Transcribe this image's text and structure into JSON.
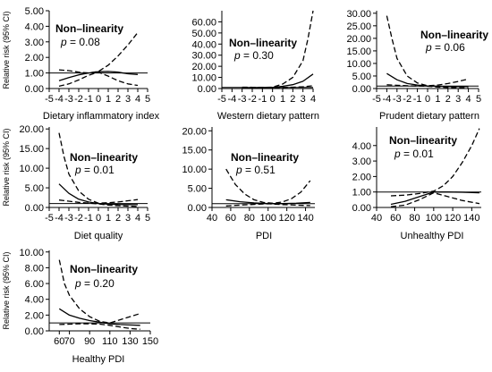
{
  "figure": {
    "y_axis_label": "Relative risk (95% CI)",
    "annotation_title": "Non–linearity",
    "p_symbol": "p",
    "p_equals": "="
  },
  "chart_data": [
    {
      "type": "line",
      "xlabel": "Dietary inflammatory index",
      "ylabel": "Relative risk (95% CI)",
      "annotation": "Non–linearity",
      "p_value": "0.08",
      "xlim": [
        -5,
        5
      ],
      "ylim": [
        0,
        5
      ],
      "x_ticks": [
        "-5",
        "-4",
        "-3",
        "-2",
        "-1",
        "0",
        "1",
        "2",
        "3",
        "4",
        "5"
      ],
      "y_ticks": [
        "0.00",
        "1.00",
        "2.00",
        "3.00",
        "4.00",
        "5.00"
      ],
      "reference_line": 1,
      "grid": false,
      "series": [
        {
          "role": "estimate",
          "x": [
            -4,
            -3,
            -2,
            -1,
            0,
            1,
            2,
            3,
            4
          ],
          "y": [
            0.5,
            0.7,
            0.88,
            1.0,
            1.08,
            1.1,
            1.05,
            0.95,
            0.9
          ]
        },
        {
          "role": "upper_ci",
          "x": [
            -4,
            -3,
            -2,
            -1,
            0,
            1,
            2,
            3,
            4
          ],
          "y": [
            1.2,
            1.15,
            1.05,
            1.0,
            1.1,
            1.5,
            2.1,
            2.8,
            3.6
          ]
        },
        {
          "role": "lower_ci",
          "x": [
            -4,
            -3,
            -2,
            -1,
            0,
            1,
            2,
            3,
            4
          ],
          "y": [
            0.15,
            0.3,
            0.55,
            0.85,
            1.05,
            0.8,
            0.5,
            0.3,
            0.2
          ]
        }
      ]
    },
    {
      "type": "line",
      "xlabel": "Western dietary pattern",
      "ylabel": "Relative risk (95% CI)",
      "annotation": "Non–linearity",
      "p_value": "0.30",
      "xlim": [
        -5,
        4
      ],
      "ylim": [
        0,
        70
      ],
      "x_ticks": [
        "-5",
        "-4",
        "-3",
        "-2",
        "-1",
        "0",
        "1",
        "2",
        "3",
        "4"
      ],
      "y_ticks": [
        "0.00",
        "10.00",
        "20.00",
        "30.00",
        "40.00",
        "50.00",
        "60.00"
      ],
      "reference_line": 1,
      "grid": false,
      "series": [
        {
          "role": "estimate",
          "x": [
            -3,
            -2,
            -1,
            0,
            1,
            2,
            3,
            4
          ],
          "y": [
            0.6,
            0.75,
            0.9,
            1.0,
            2.0,
            3.5,
            6.5,
            13.0
          ]
        },
        {
          "role": "upper_ci",
          "x": [
            -3,
            -2,
            -1,
            0,
            1,
            2,
            3,
            3.5,
            4
          ],
          "y": [
            1.2,
            1.1,
            1.05,
            1.2,
            4.0,
            10.0,
            25.0,
            45.0,
            70.0
          ]
        },
        {
          "role": "lower_ci",
          "x": [
            -3,
            -2,
            -1,
            0,
            1,
            2,
            3,
            4
          ],
          "y": [
            0.3,
            0.5,
            0.8,
            0.9,
            1.0,
            1.2,
            1.6,
            2.5
          ]
        }
      ]
    },
    {
      "type": "line",
      "xlabel": "Prudent dietary pattern",
      "ylabel": "Relative risk (95% CI)",
      "annotation": "Non–linearity",
      "p_value": "0.06",
      "xlim": [
        -5,
        5
      ],
      "ylim": [
        0,
        31
      ],
      "x_ticks": [
        "-5",
        "-4",
        "-3",
        "-2",
        "-1",
        "0",
        "1",
        "2",
        "3",
        "4",
        "5"
      ],
      "y_ticks": [
        "0.00",
        "5.00",
        "10.00",
        "15.00",
        "20.00",
        "25.00",
        "30.00"
      ],
      "reference_line": 1,
      "grid": false,
      "series": [
        {
          "role": "estimate",
          "x": [
            -4,
            -3,
            -2,
            -1,
            0,
            1,
            2,
            3,
            4
          ],
          "y": [
            6.0,
            3.5,
            2.0,
            1.4,
            1.0,
            0.9,
            0.8,
            0.8,
            0.8
          ]
        },
        {
          "role": "upper_ci",
          "x": [
            -4,
            -3.5,
            -3,
            -2,
            -1,
            0,
            1,
            2,
            3,
            4
          ],
          "y": [
            29.0,
            20.0,
            12.0,
            5.0,
            2.2,
            1.1,
            1.4,
            2.0,
            2.8,
            3.8
          ]
        },
        {
          "role": "lower_ci",
          "x": [
            -4,
            -3,
            -2,
            -1,
            0,
            1,
            2,
            3,
            4
          ],
          "y": [
            1.5,
            1.3,
            1.1,
            1.0,
            0.9,
            0.6,
            0.4,
            0.3,
            0.2
          ]
        }
      ]
    },
    {
      "type": "line",
      "xlabel": "Diet quality",
      "ylabel": "Relative risk (95% CI)",
      "annotation": "Non–linearity",
      "p_value": "0.01",
      "xlim": [
        -5,
        5
      ],
      "ylim": [
        0,
        20.5
      ],
      "x_ticks": [
        "-5",
        "-4",
        "-3",
        "-2",
        "-1",
        "0",
        "1",
        "2",
        "3",
        "4",
        "5"
      ],
      "y_ticks": [
        "0.00",
        "5.00",
        "10.00",
        "15.00",
        "20.00"
      ],
      "reference_line": 1,
      "grid": false,
      "series": [
        {
          "role": "estimate",
          "x": [
            -4,
            -3,
            -2,
            -1,
            0,
            1,
            2,
            3,
            4
          ],
          "y": [
            6.0,
            3.6,
            2.1,
            1.4,
            1.0,
            0.85,
            0.75,
            0.72,
            0.7
          ]
        },
        {
          "role": "upper_ci",
          "x": [
            -4,
            -3.5,
            -3,
            -2,
            -1,
            0,
            1,
            2,
            3,
            4
          ],
          "y": [
            19.0,
            13.0,
            8.5,
            4.2,
            2.1,
            1.1,
            1.2,
            1.4,
            1.7,
            2.0
          ]
        },
        {
          "role": "lower_ci",
          "x": [
            -4,
            -3,
            -2,
            -1,
            0,
            1,
            2,
            3,
            4
          ],
          "y": [
            1.9,
            1.6,
            1.3,
            1.1,
            0.9,
            0.6,
            0.45,
            0.35,
            0.25
          ]
        }
      ]
    },
    {
      "type": "line",
      "xlabel": "PDI",
      "ylabel": "Relative risk (95% CI)",
      "annotation": "Non–linearity",
      "p_value": "0.51",
      "xlim": [
        40,
        150
      ],
      "ylim": [
        0,
        21
      ],
      "x_ticks": [
        "40",
        "60",
        "80",
        "100",
        "120",
        "140"
      ],
      "y_ticks": [
        "0.00",
        "5.00",
        "10.00",
        "15.00",
        "20.00"
      ],
      "reference_line": 1,
      "grid": false,
      "series": [
        {
          "role": "estimate",
          "x": [
            55,
            70,
            85,
            100,
            115,
            130,
            145
          ],
          "y": [
            2.0,
            1.5,
            1.2,
            1.0,
            1.0,
            1.1,
            1.3
          ]
        },
        {
          "role": "upper_ci",
          "x": [
            55,
            65,
            75,
            85,
            95,
            105,
            115,
            125,
            135,
            145
          ],
          "y": [
            10.0,
            6.0,
            3.5,
            2.0,
            1.3,
            1.1,
            1.4,
            2.3,
            4.0,
            7.0
          ]
        },
        {
          "role": "lower_ci",
          "x": [
            55,
            70,
            85,
            100,
            115,
            130,
            145
          ],
          "y": [
            0.4,
            0.6,
            0.8,
            0.95,
            0.75,
            0.6,
            0.5
          ]
        }
      ]
    },
    {
      "type": "line",
      "xlabel": "Unhealthy PDI",
      "ylabel": "Relative risk (95% CI)",
      "annotation": "Non–linearity",
      "p_value": "0.01",
      "xlim": [
        40,
        150
      ],
      "ylim": [
        0,
        5.2
      ],
      "x_ticks": [
        "40",
        "60",
        "80",
        "100",
        "120",
        "140"
      ],
      "y_ticks": [
        "0.00",
        "1.00",
        "2.00",
        "3.00",
        "4.00"
      ],
      "reference_line": 1,
      "grid": false,
      "series": [
        {
          "role": "estimate",
          "x": [
            55,
            70,
            85,
            100,
            115,
            130,
            148
          ],
          "y": [
            0.2,
            0.4,
            0.7,
            1.0,
            1.0,
            0.98,
            0.95
          ]
        },
        {
          "role": "upper_ci",
          "x": [
            55,
            70,
            85,
            100,
            110,
            120,
            130,
            140,
            148
          ],
          "y": [
            0.75,
            0.8,
            0.9,
            1.05,
            1.4,
            2.0,
            2.9,
            4.0,
            5.1
          ]
        },
        {
          "role": "lower_ci",
          "x": [
            55,
            70,
            85,
            100,
            115,
            130,
            148
          ],
          "y": [
            0.05,
            0.15,
            0.5,
            0.95,
            0.7,
            0.45,
            0.25
          ]
        }
      ]
    },
    {
      "type": "line",
      "xlabel": "Healthy PDI",
      "ylabel": "Relative risk (95% CI)",
      "annotation": "Non–linearity",
      "p_value": "0.20",
      "xlim": [
        50,
        150
      ],
      "ylim": [
        0,
        10.2
      ],
      "x_ticks": [
        "60",
        "70",
        "90",
        "110",
        "130",
        "150"
      ],
      "y_ticks": [
        "0.00",
        "2.00",
        "4.00",
        "6.00",
        "8.00",
        "10.00"
      ],
      "reference_line": 1,
      "grid": false,
      "series": [
        {
          "role": "estimate",
          "x": [
            60,
            70,
            80,
            90,
            100,
            110,
            120,
            130,
            140
          ],
          "y": [
            2.8,
            2.0,
            1.6,
            1.3,
            1.1,
            0.9,
            0.8,
            0.75,
            0.7
          ]
        },
        {
          "role": "upper_ci",
          "x": [
            60,
            65,
            70,
            80,
            90,
            100,
            110,
            120,
            130,
            140
          ],
          "y": [
            9.0,
            6.0,
            4.5,
            2.8,
            1.8,
            1.2,
            1.0,
            1.4,
            1.8,
            2.2
          ]
        },
        {
          "role": "lower_ci",
          "x": [
            60,
            70,
            80,
            90,
            100,
            110,
            120,
            130,
            140
          ],
          "y": [
            0.8,
            0.85,
            0.9,
            0.9,
            0.85,
            0.7,
            0.5,
            0.3,
            0.2
          ]
        }
      ]
    }
  ]
}
